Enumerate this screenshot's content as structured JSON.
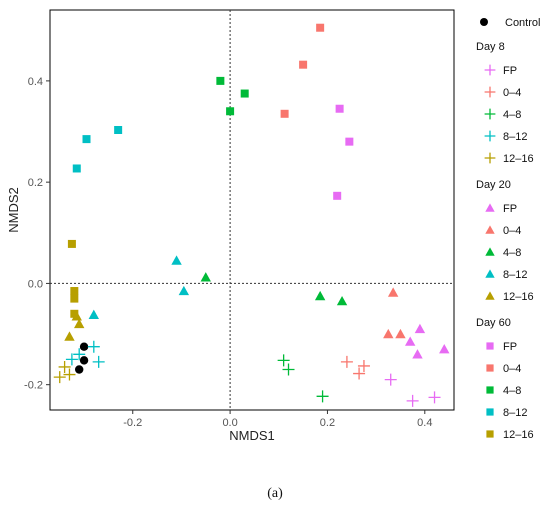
{
  "caption": "(a)",
  "chart_data": {
    "type": "scatter",
    "xlabel": "NMDS1",
    "ylabel": "NMDS2",
    "xlim": [
      -0.37,
      0.46
    ],
    "ylim": [
      -0.25,
      0.54
    ],
    "x_ticks": [
      -0.2,
      0.0,
      0.2,
      0.4
    ],
    "y_ticks": [
      -0.2,
      0.0,
      0.2,
      0.4
    ],
    "x_tick_labels": [
      "-0.2",
      "0.0",
      "0.2",
      "0.4"
    ],
    "y_tick_labels": [
      "-0.2",
      "0.0",
      "0.2",
      "0.4"
    ],
    "reference_lines": {
      "x": 0,
      "y": 0,
      "style": "dotted"
    },
    "grid": false,
    "legend_position": "right",
    "colors": {
      "control": "#000000",
      "FP": "#E76BF3",
      "0-4": "#F8766D",
      "4-8": "#00BA38",
      "8-12": "#00BFC4",
      "12-16": "#B79F00"
    },
    "legend": {
      "control_label": "Control",
      "groups": [
        {
          "title": "Day 8",
          "marker": "plus",
          "items": [
            "FP",
            "0–4",
            "4–8",
            "8–12",
            "12–16"
          ]
        },
        {
          "title": "Day 20",
          "marker": "triangle",
          "items": [
            "FP",
            "0–4",
            "4–8",
            "8–12",
            "12–16"
          ]
        },
        {
          "title": "Day 60",
          "marker": "square",
          "items": [
            "FP",
            "0–4",
            "4–8",
            "8–12",
            "12–16"
          ]
        }
      ]
    },
    "series": [
      {
        "group": "control",
        "marker": "circle",
        "color_key": "control",
        "points": [
          [
            -0.3,
            -0.125
          ],
          [
            -0.3,
            -0.152
          ],
          [
            -0.31,
            -0.17
          ]
        ]
      },
      {
        "group": "day8",
        "marker": "plus",
        "color_key": "FP",
        "points": [
          [
            0.33,
            -0.19
          ],
          [
            0.375,
            -0.232
          ],
          [
            0.42,
            -0.225
          ]
        ]
      },
      {
        "group": "day8",
        "marker": "plus",
        "color_key": "0-4",
        "points": [
          [
            0.24,
            -0.155
          ],
          [
            0.265,
            -0.178
          ],
          [
            0.275,
            -0.163
          ]
        ]
      },
      {
        "group": "day8",
        "marker": "plus",
        "color_key": "4-8",
        "points": [
          [
            0.11,
            -0.152
          ],
          [
            0.12,
            -0.17
          ],
          [
            0.19,
            -0.223
          ]
        ]
      },
      {
        "group": "day8",
        "marker": "plus",
        "color_key": "8-12",
        "points": [
          [
            -0.28,
            -0.125
          ],
          [
            -0.27,
            -0.155
          ],
          [
            -0.31,
            -0.14
          ],
          [
            -0.325,
            -0.15
          ]
        ]
      },
      {
        "group": "day8",
        "marker": "plus",
        "color_key": "12-16",
        "points": [
          [
            -0.34,
            -0.165
          ],
          [
            -0.33,
            -0.18
          ],
          [
            -0.35,
            -0.185
          ]
        ]
      },
      {
        "group": "day20",
        "marker": "triangle",
        "color_key": "FP",
        "points": [
          [
            0.39,
            -0.09
          ],
          [
            0.37,
            -0.115
          ],
          [
            0.385,
            -0.14
          ],
          [
            0.44,
            -0.13
          ]
        ]
      },
      {
        "group": "day20",
        "marker": "triangle",
        "color_key": "0-4",
        "points": [
          [
            0.335,
            -0.018
          ],
          [
            0.325,
            -0.1
          ],
          [
            0.35,
            -0.1
          ]
        ]
      },
      {
        "group": "day20",
        "marker": "triangle",
        "color_key": "4-8",
        "points": [
          [
            0.185,
            -0.025
          ],
          [
            0.23,
            -0.035
          ],
          [
            -0.05,
            0.012
          ]
        ]
      },
      {
        "group": "day20",
        "marker": "triangle",
        "color_key": "8-12",
        "points": [
          [
            -0.11,
            0.045
          ],
          [
            -0.095,
            -0.015
          ],
          [
            -0.28,
            -0.062
          ]
        ]
      },
      {
        "group": "day20",
        "marker": "triangle",
        "color_key": "12-16",
        "points": [
          [
            -0.33,
            -0.105
          ],
          [
            -0.315,
            -0.065
          ],
          [
            -0.31,
            -0.08
          ]
        ]
      },
      {
        "group": "day60",
        "marker": "square",
        "color_key": "FP",
        "points": [
          [
            0.225,
            0.345
          ],
          [
            0.245,
            0.28
          ],
          [
            0.22,
            0.173
          ]
        ]
      },
      {
        "group": "day60",
        "marker": "square",
        "color_key": "0-4",
        "points": [
          [
            0.185,
            0.505
          ],
          [
            0.15,
            0.432
          ],
          [
            0.112,
            0.335
          ]
        ]
      },
      {
        "group": "day60",
        "marker": "square",
        "color_key": "4-8",
        "points": [
          [
            -0.02,
            0.4
          ],
          [
            0.03,
            0.375
          ],
          [
            0.0,
            0.34
          ]
        ]
      },
      {
        "group": "day60",
        "marker": "square",
        "color_key": "8-12",
        "points": [
          [
            -0.23,
            0.303
          ],
          [
            -0.295,
            0.285
          ],
          [
            -0.315,
            0.227
          ]
        ]
      },
      {
        "group": "day60",
        "marker": "square",
        "color_key": "12-16",
        "points": [
          [
            -0.325,
            0.078
          ],
          [
            -0.32,
            -0.015
          ],
          [
            -0.32,
            -0.03
          ],
          [
            -0.32,
            -0.06
          ]
        ]
      }
    ]
  }
}
